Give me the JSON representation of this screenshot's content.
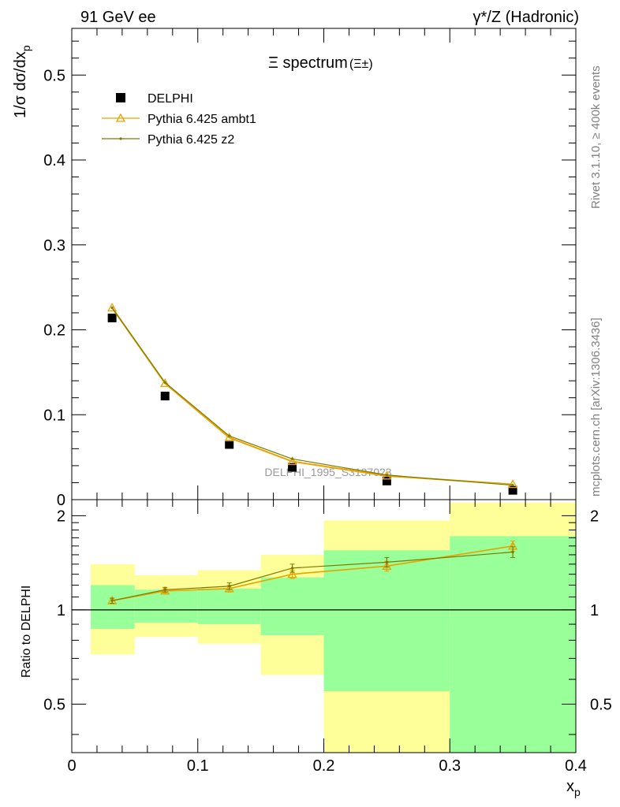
{
  "header": {
    "left": "91 GeV ee",
    "right": "γ*/Z (Hadronic)"
  },
  "side_text": {
    "rivet": "Rivet 3.1.10, ≥ 400k events",
    "mcplots": "mcplots.cern.ch [arXiv:1306.3436]"
  },
  "chart_data": [
    {
      "type": "scatter",
      "title": "Ξ spectrum",
      "title_suffix": "(Ξ±)",
      "ylabel": "1/σ dσ/dx_p",
      "watermark": "DELPHI_1995_S3137023",
      "xlim": [
        0,
        0.4
      ],
      "ylim": [
        0,
        0.555
      ],
      "yticks": [
        "0",
        "0.1",
        "0.2",
        "0.3",
        "0.4",
        "0.5"
      ],
      "ytick_values": [
        0,
        0.1,
        0.2,
        0.3,
        0.4,
        0.5
      ],
      "legend_position": "top-left",
      "series": [
        {
          "name": "DELPHI",
          "marker": "square",
          "color": "#000000",
          "x": [
            0.032,
            0.074,
            0.125,
            0.175,
            0.25,
            0.35
          ],
          "y": [
            0.214,
            0.122,
            0.065,
            0.038,
            0.022,
            0.011
          ]
        },
        {
          "name": "Pythia 6.425 ambt1",
          "marker": "triangle",
          "color": "#e8a300",
          "x": [
            0.032,
            0.074,
            0.125,
            0.175,
            0.25,
            0.35
          ],
          "y": [
            0.226,
            0.137,
            0.073,
            0.045,
            0.028,
            0.018
          ]
        },
        {
          "name": "Pythia 6.425 z2",
          "marker": "dot",
          "color": "#7a7a00",
          "x": [
            0.032,
            0.074,
            0.125,
            0.175,
            0.25,
            0.35
          ],
          "y": [
            0.226,
            0.138,
            0.075,
            0.048,
            0.029,
            0.017
          ]
        }
      ]
    },
    {
      "type": "line",
      "ylabel": "Ratio to DELPHI",
      "xlabel": "x_p",
      "xlim": [
        0,
        0.4
      ],
      "ylim": [
        0.35,
        2.25
      ],
      "yticks": [
        "0.5",
        "1",
        "2"
      ],
      "ytick_values": [
        0.5,
        1,
        2
      ],
      "xticks": [
        "0",
        "0.1",
        "0.2",
        "0.3",
        "0.4"
      ],
      "xtick_values": [
        0,
        0.1,
        0.2,
        0.3,
        0.4
      ],
      "bands": [
        {
          "x0": 0.015,
          "x1": 0.05,
          "green": [
            0.87,
            1.2
          ],
          "yellow": [
            0.72,
            1.4
          ]
        },
        {
          "x0": 0.05,
          "x1": 0.1,
          "green": [
            0.91,
            1.16
          ],
          "yellow": [
            0.82,
            1.29
          ]
        },
        {
          "x0": 0.1,
          "x1": 0.15,
          "green": [
            0.9,
            1.17
          ],
          "yellow": [
            0.78,
            1.34
          ]
        },
        {
          "x0": 0.15,
          "x1": 0.2,
          "green": [
            0.83,
            1.27
          ],
          "yellow": [
            0.62,
            1.5
          ]
        },
        {
          "x0": 0.2,
          "x1": 0.3,
          "green": [
            0.55,
            1.55
          ],
          "yellow": [
            0.35,
            1.93
          ]
        },
        {
          "x0": 0.3,
          "x1": 0.4,
          "green": [
            0.35,
            1.72
          ],
          "yellow": [
            0.35,
            2.2
          ]
        }
      ],
      "series": [
        {
          "name": "Pythia 6.425 ambt1",
          "color": "#e8a300",
          "marker": "triangle",
          "x": [
            0.032,
            0.074,
            0.125,
            0.175,
            0.25,
            0.35
          ],
          "y": [
            1.07,
            1.15,
            1.17,
            1.3,
            1.38,
            1.6
          ],
          "err": [
            0.02,
            0.02,
            0.03,
            0.04,
            0.05,
            0.06
          ]
        },
        {
          "name": "Pythia 6.425 z2",
          "color": "#7a7a00",
          "marker": "dot",
          "x": [
            0.032,
            0.074,
            0.125,
            0.175,
            0.25,
            0.35
          ],
          "y": [
            1.07,
            1.16,
            1.19,
            1.36,
            1.42,
            1.53
          ],
          "err": [
            0.02,
            0.02,
            0.03,
            0.04,
            0.05,
            0.06
          ]
        }
      ]
    }
  ]
}
